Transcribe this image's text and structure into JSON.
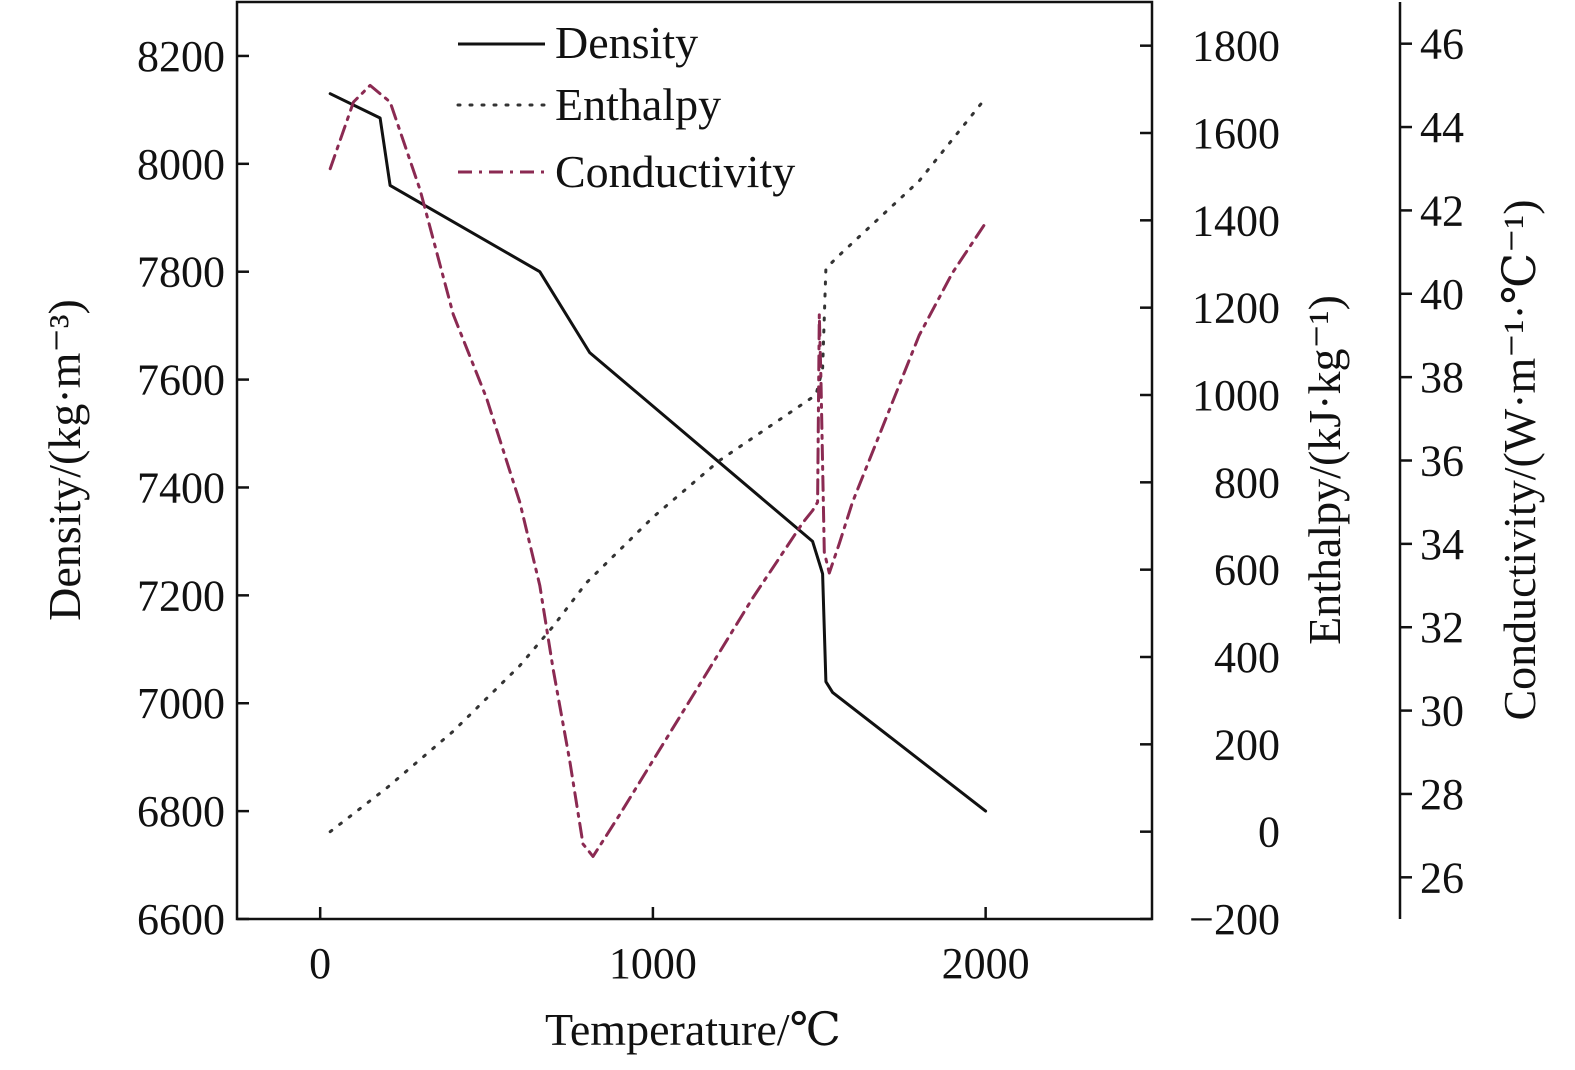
{
  "chart_data": {
    "type": "line",
    "title": "",
    "xlabel": "Temperature/℃",
    "xlim": [
      -250,
      2500
    ],
    "xticks": [
      0,
      1000,
      2000
    ],
    "xtick_labels": [
      "0",
      "1000",
      "2000"
    ],
    "axes": {
      "density": {
        "label": "Density/(kg·m⁻³)",
        "ylim": [
          6600,
          8300
        ],
        "ticks": [
          6600,
          6800,
          7000,
          7200,
          7400,
          7600,
          7800,
          8000,
          8200
        ],
        "tick_labels": [
          "6600",
          "6800",
          "7000",
          "7200",
          "7400",
          "7600",
          "7800",
          "8000",
          "8200"
        ]
      },
      "enthalpy": {
        "label": "Enthalpy/(kJ·kg⁻¹)",
        "ylim": [
          -200,
          1900
        ],
        "ticks": [
          -200,
          0,
          200,
          400,
          600,
          800,
          1000,
          1200,
          1400,
          1600,
          1800
        ],
        "tick_labels": [
          "−200",
          "0",
          "200",
          "400",
          "600",
          "800",
          "1000",
          "1200",
          "1400",
          "1600",
          "1800"
        ]
      },
      "conductivity": {
        "label": "Conductivity/(W·m⁻¹·℃⁻¹)",
        "ylim": [
          25,
          47
        ],
        "ticks": [
          26,
          28,
          30,
          32,
          34,
          36,
          38,
          40,
          42,
          44,
          46
        ],
        "tick_labels": [
          "26",
          "28",
          "30",
          "32",
          "34",
          "36",
          "38",
          "40",
          "42",
          "44",
          "46"
        ]
      }
    },
    "legend": {
      "position": "top-center",
      "entries": [
        "Density",
        "Enthalpy",
        "Conductivity"
      ]
    },
    "series": [
      {
        "name": "Density",
        "axis": "density",
        "style": "solid",
        "color": "#111111",
        "x": [
          30,
          180,
          210,
          660,
          810,
          1480,
          1500,
          1510,
          1520,
          1540,
          2000
        ],
        "y": [
          8130,
          8085,
          7960,
          7800,
          7650,
          7300,
          7260,
          7240,
          7040,
          7020,
          6800
        ]
      },
      {
        "name": "Enthalpy",
        "axis": "enthalpy",
        "style": "dotted",
        "color": "#333333",
        "x": [
          30,
          200,
          400,
          600,
          700,
          800,
          1000,
          1200,
          1490,
          1510,
          1520,
          1560,
          1800,
          2000
        ],
        "y": [
          0,
          100,
          230,
          380,
          470,
          570,
          720,
          850,
          1000,
          1060,
          1290,
          1320,
          1490,
          1680
        ]
      },
      {
        "name": "Conductivity",
        "axis": "conductivity",
        "style": "dashdot",
        "color": "#8b2a52",
        "x": [
          30,
          100,
          150,
          210,
          300,
          400,
          500,
          600,
          660,
          700,
          750,
          790,
          820,
          900,
          1000,
          1100,
          1200,
          1300,
          1400,
          1450,
          1480,
          1495,
          1500,
          1505,
          1515,
          1530,
          1560,
          1600,
          1700,
          1800,
          1900,
          2000
        ],
        "y": [
          43.0,
          44.6,
          45.0,
          44.6,
          42.5,
          39.5,
          37.5,
          35.0,
          33.0,
          31.0,
          28.8,
          26.8,
          26.5,
          27.5,
          28.8,
          30.1,
          31.4,
          32.7,
          33.9,
          34.5,
          34.8,
          35.0,
          39.5,
          38.0,
          33.8,
          33.3,
          34.0,
          35.0,
          37.0,
          39.0,
          40.5,
          41.7
        ]
      }
    ]
  }
}
